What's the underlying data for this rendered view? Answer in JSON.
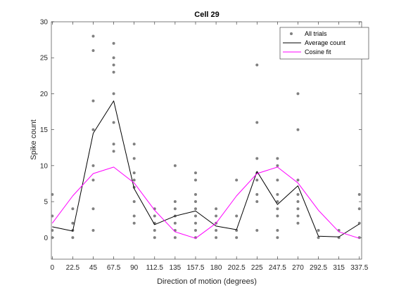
{
  "chart_data": {
    "type": "line",
    "title": "Cell 29",
    "xlabel": "Direction of motion (degrees)",
    "ylabel": "Spike count",
    "xlim": [
      -1,
      340
    ],
    "ylim": [
      -3,
      30
    ],
    "xticks": [
      0,
      22.5,
      45,
      67.5,
      90,
      112.5,
      135,
      157.5,
      180,
      202.5,
      225,
      247.5,
      270,
      292.5,
      315,
      337.5
    ],
    "xtick_labels": [
      "0",
      "22.5",
      "45",
      "67.5",
      "90",
      "112.5",
      "135",
      "157.5",
      "180",
      "202.5",
      "225",
      "247.5",
      "270",
      "292.5",
      "315",
      "337.5"
    ],
    "yticks": [
      0,
      5,
      10,
      15,
      20,
      25,
      30
    ],
    "ytick_labels": [
      "0",
      "5",
      "10",
      "15",
      "20",
      "25",
      "30"
    ],
    "grid": false,
    "legend_position": "top-right",
    "series": [
      {
        "name": "All trials",
        "kind": "scatter",
        "color": "#808080",
        "points": [
          [
            0,
            6
          ],
          [
            0,
            3
          ],
          [
            0,
            1
          ],
          [
            0,
            0
          ],
          [
            22.5,
            4
          ],
          [
            22.5,
            2
          ],
          [
            22.5,
            1
          ],
          [
            22.5,
            0
          ],
          [
            45,
            28
          ],
          [
            45,
            26
          ],
          [
            45,
            19
          ],
          [
            45,
            15
          ],
          [
            45,
            10
          ],
          [
            45,
            8
          ],
          [
            45,
            4
          ],
          [
            45,
            1
          ],
          [
            67.5,
            27
          ],
          [
            67.5,
            25
          ],
          [
            67.5,
            24
          ],
          [
            67.5,
            23
          ],
          [
            67.5,
            20
          ],
          [
            67.5,
            16
          ],
          [
            67.5,
            13
          ],
          [
            67.5,
            12
          ],
          [
            90,
            13
          ],
          [
            90,
            11
          ],
          [
            90,
            9
          ],
          [
            90,
            8
          ],
          [
            90,
            7
          ],
          [
            90,
            5
          ],
          [
            90,
            3
          ],
          [
            90,
            2
          ],
          [
            112.5,
            4
          ],
          [
            112.5,
            3
          ],
          [
            112.5,
            2
          ],
          [
            112.5,
            1
          ],
          [
            112.5,
            0
          ],
          [
            135,
            10
          ],
          [
            135,
            5
          ],
          [
            135,
            4
          ],
          [
            135,
            3
          ],
          [
            135,
            2
          ],
          [
            135,
            1
          ],
          [
            135,
            0
          ],
          [
            157.5,
            9
          ],
          [
            157.5,
            8
          ],
          [
            157.5,
            6
          ],
          [
            157.5,
            5
          ],
          [
            157.5,
            4
          ],
          [
            157.5,
            3
          ],
          [
            157.5,
            2
          ],
          [
            157.5,
            1
          ],
          [
            157.5,
            0
          ],
          [
            180,
            4
          ],
          [
            180,
            3
          ],
          [
            180,
            2
          ],
          [
            180,
            1
          ],
          [
            180,
            0
          ],
          [
            202.5,
            8
          ],
          [
            202.5,
            3
          ],
          [
            202.5,
            1
          ],
          [
            202.5,
            0
          ],
          [
            225,
            24
          ],
          [
            225,
            16
          ],
          [
            225,
            11
          ],
          [
            225,
            9
          ],
          [
            225,
            8
          ],
          [
            225,
            6
          ],
          [
            225,
            5
          ],
          [
            225,
            1
          ],
          [
            247.5,
            11
          ],
          [
            247.5,
            10
          ],
          [
            247.5,
            8
          ],
          [
            247.5,
            6
          ],
          [
            247.5,
            5
          ],
          [
            247.5,
            4
          ],
          [
            247.5,
            3
          ],
          [
            247.5,
            1
          ],
          [
            247.5,
            0
          ],
          [
            270,
            20
          ],
          [
            270,
            15
          ],
          [
            270,
            8
          ],
          [
            270,
            6
          ],
          [
            270,
            5
          ],
          [
            270,
            4
          ],
          [
            270,
            3
          ],
          [
            270,
            2
          ],
          [
            292.5,
            1
          ],
          [
            292.5,
            0
          ],
          [
            315,
            1
          ],
          [
            315,
            0
          ],
          [
            337.5,
            6
          ],
          [
            337.5,
            4
          ],
          [
            337.5,
            2
          ],
          [
            337.5,
            0
          ]
        ]
      },
      {
        "name": "Average count",
        "kind": "line",
        "color": "#000000",
        "x": [
          0,
          22.5,
          45,
          67.5,
          90,
          112.5,
          135,
          157.5,
          180,
          202.5,
          225,
          247.5,
          270,
          292.5,
          315,
          337.5
        ],
        "y": [
          1.5,
          0.9,
          14.5,
          19.0,
          6.8,
          1.8,
          3.0,
          3.7,
          1.6,
          1.1,
          9.2,
          4.6,
          7.2,
          0.2,
          0.1,
          1.9
        ]
      },
      {
        "name": "Cosine fit",
        "kind": "line",
        "color": "#ff00ff",
        "x": [
          0,
          22.5,
          45,
          67.5,
          90,
          112.5,
          135,
          157.5,
          180,
          202.5,
          225,
          247.5,
          270,
          292.5,
          315,
          337.5
        ],
        "y": [
          2.0,
          5.8,
          8.9,
          9.8,
          7.6,
          3.8,
          0.8,
          -0.1,
          2.0,
          5.8,
          8.9,
          9.8,
          7.6,
          3.8,
          0.8,
          -0.1
        ]
      }
    ]
  }
}
